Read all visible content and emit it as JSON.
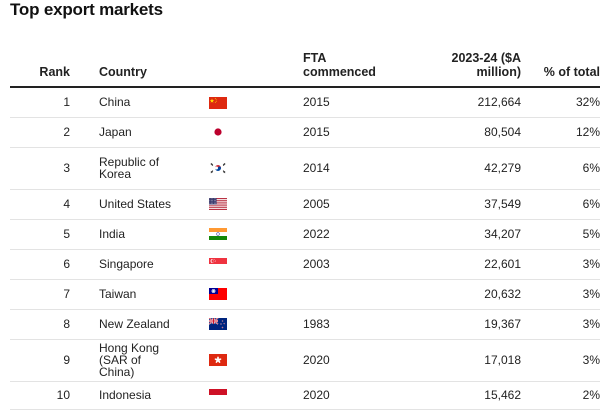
{
  "title": "Top export markets",
  "headers": {
    "rank": "Rank",
    "country": "Country",
    "fta_line1": "FTA",
    "fta_line2": "commenced",
    "value_line1": "2023-24 ($A",
    "value_line2": "million)",
    "pct": "% of total"
  },
  "colors": {
    "header_rule": "#222222",
    "row_rule": "#e3e3e3",
    "text": "#222222"
  },
  "chart_data": {
    "type": "table",
    "title": "Top export markets",
    "columns": [
      "Rank",
      "Country",
      "FTA commenced",
      "2023-24 ($A million)",
      "% of total"
    ],
    "rows": [
      {
        "rank": "1",
        "country": "China",
        "flag": "china-flag",
        "fta": "2015",
        "value": "212,664",
        "pct": "32%"
      },
      {
        "rank": "2",
        "country": "Japan",
        "flag": "japan-flag",
        "fta": "2015",
        "value": "80,504",
        "pct": "12%"
      },
      {
        "rank": "3",
        "country": "Republic of Korea",
        "flag": "south-korea-flag",
        "fta": "2014",
        "value": "42,279",
        "pct": "6%"
      },
      {
        "rank": "4",
        "country": "United States",
        "flag": "united-states-flag",
        "fta": "2005",
        "value": "37,549",
        "pct": "6%"
      },
      {
        "rank": "5",
        "country": "India",
        "flag": "india-flag",
        "fta": "2022",
        "value": "34,207",
        "pct": "5%"
      },
      {
        "rank": "6",
        "country": "Singapore",
        "flag": "singapore-flag",
        "fta": "2003",
        "value": "22,601",
        "pct": "3%"
      },
      {
        "rank": "7",
        "country": "Taiwan",
        "flag": "taiwan-flag",
        "fta": "",
        "value": "20,632",
        "pct": "3%"
      },
      {
        "rank": "8",
        "country": "New Zealand",
        "flag": "new-zealand-flag",
        "fta": "1983",
        "value": "19,367",
        "pct": "3%"
      },
      {
        "rank": "9",
        "country": "Hong Kong (SAR of China)",
        "flag": "hong-kong-flag",
        "fta": "2020",
        "value": "17,018",
        "pct": "3%"
      },
      {
        "rank": "10",
        "country": "Indonesia",
        "flag": "indonesia-flag",
        "fta": "2020",
        "value": "15,462",
        "pct": "2%"
      }
    ]
  }
}
